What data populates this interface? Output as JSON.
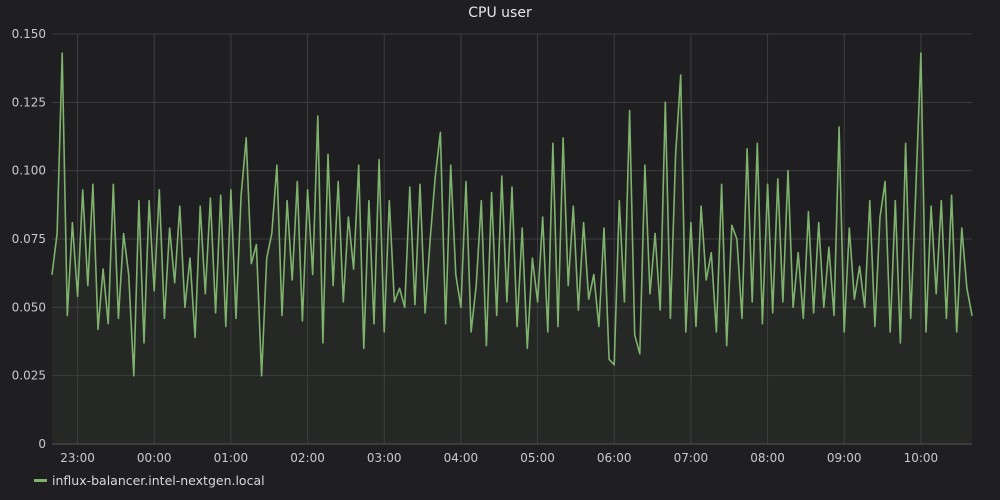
{
  "chart_data": {
    "type": "line",
    "title": "CPU user",
    "xlabel": "",
    "ylabel": "",
    "ylim": [
      0,
      0.15
    ],
    "xlim": [
      "22:40",
      "10:40"
    ],
    "y_ticks": [
      "0",
      "0.025",
      "0.050",
      "0.075",
      "0.100",
      "0.125",
      "0.150"
    ],
    "x_ticks": [
      "23:00",
      "00:00",
      "01:00",
      "02:00",
      "03:00",
      "04:00",
      "05:00",
      "06:00",
      "07:00",
      "08:00",
      "09:00",
      "10:00"
    ],
    "grid": true,
    "legend_position": "bottom-left",
    "colors": {
      "background": "#1f1e20",
      "line": "#7eb26d",
      "fill": "#262825",
      "grid": "#3e3e40",
      "text": "#d8d9da"
    },
    "series": [
      {
        "name": "influx-balancer.intel-nextgen.local",
        "x_start": "22:40",
        "x_step_minutes": 4,
        "values": [
          0.062,
          0.077,
          0.143,
          0.047,
          0.081,
          0.054,
          0.093,
          0.058,
          0.095,
          0.042,
          0.064,
          0.044,
          0.095,
          0.046,
          0.077,
          0.062,
          0.025,
          0.089,
          0.037,
          0.089,
          0.056,
          0.093,
          0.046,
          0.079,
          0.059,
          0.087,
          0.05,
          0.068,
          0.039,
          0.087,
          0.055,
          0.09,
          0.048,
          0.091,
          0.043,
          0.093,
          0.046,
          0.091,
          0.112,
          0.066,
          0.073,
          0.025,
          0.068,
          0.077,
          0.102,
          0.047,
          0.089,
          0.06,
          0.096,
          0.045,
          0.093,
          0.062,
          0.12,
          0.037,
          0.106,
          0.058,
          0.096,
          0.052,
          0.083,
          0.064,
          0.102,
          0.035,
          0.089,
          0.044,
          0.104,
          0.041,
          0.089,
          0.052,
          0.057,
          0.05,
          0.094,
          0.051,
          0.095,
          0.048,
          0.075,
          0.098,
          0.114,
          0.044,
          0.102,
          0.062,
          0.05,
          0.096,
          0.041,
          0.058,
          0.089,
          0.036,
          0.092,
          0.047,
          0.098,
          0.052,
          0.094,
          0.043,
          0.079,
          0.035,
          0.068,
          0.052,
          0.083,
          0.041,
          0.11,
          0.043,
          0.112,
          0.058,
          0.087,
          0.049,
          0.081,
          0.053,
          0.062,
          0.043,
          0.079,
          0.031,
          0.029,
          0.089,
          0.052,
          0.122,
          0.04,
          0.033,
          0.102,
          0.055,
          0.077,
          0.049,
          0.125,
          0.046,
          0.106,
          0.135,
          0.041,
          0.081,
          0.043,
          0.087,
          0.06,
          0.07,
          0.041,
          0.095,
          0.036,
          0.08,
          0.075,
          0.046,
          0.108,
          0.052,
          0.11,
          0.044,
          0.095,
          0.048,
          0.097,
          0.052,
          0.1,
          0.05,
          0.07,
          0.046,
          0.085,
          0.048,
          0.081,
          0.05,
          0.072,
          0.047,
          0.116,
          0.041,
          0.079,
          0.053,
          0.065,
          0.05,
          0.089,
          0.043,
          0.083,
          0.096,
          0.041,
          0.089,
          0.037,
          0.11,
          0.046,
          0.093,
          0.143,
          0.041,
          0.087,
          0.055,
          0.089,
          0.046,
          0.091,
          0.041,
          0.079,
          0.057,
          0.047
        ]
      }
    ]
  }
}
